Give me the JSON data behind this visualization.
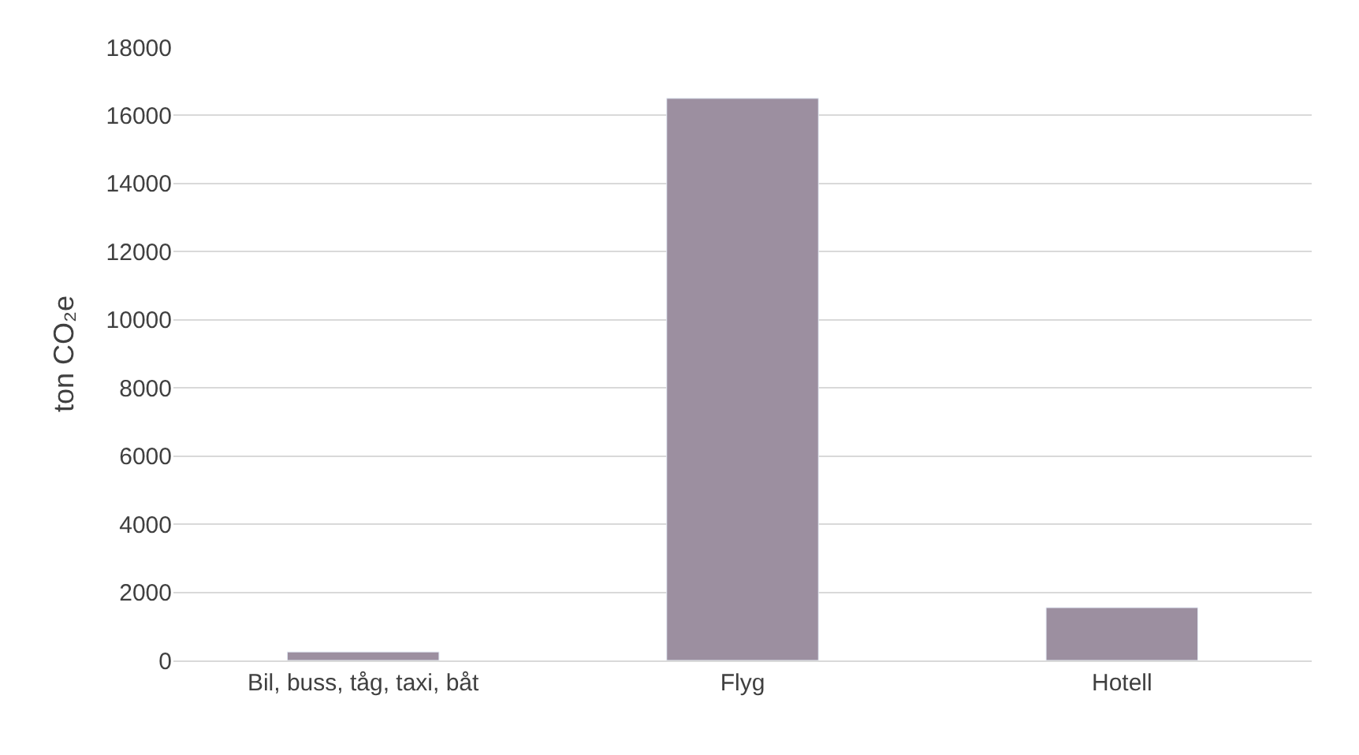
{
  "chart_data": {
    "type": "bar",
    "ylabel": "ton CO₂e",
    "categories": [
      "Bil, buss, tåg, taxi, båt",
      "Flyg",
      "Hotell"
    ],
    "values": [
      250,
      16500,
      1550
    ],
    "color": "#9c8fa0",
    "ylim": [
      0,
      18000
    ],
    "yticks": [
      0,
      2000,
      4000,
      6000,
      8000,
      10000,
      12000,
      14000,
      16000,
      18000
    ],
    "grid": "y",
    "legend": false
  }
}
